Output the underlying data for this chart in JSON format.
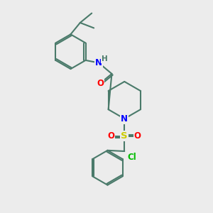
{
  "bg_color": "#ececec",
  "bond_color": "#4a7a6a",
  "bond_width": 1.5,
  "atom_colors": {
    "O": "#ff0000",
    "N": "#0000ff",
    "S": "#cccc00",
    "Cl": "#00bb00",
    "C": "#4a7a6a"
  },
  "font_size_atom": 8.5,
  "figsize": [
    3.0,
    3.0
  ],
  "dpi": 100
}
